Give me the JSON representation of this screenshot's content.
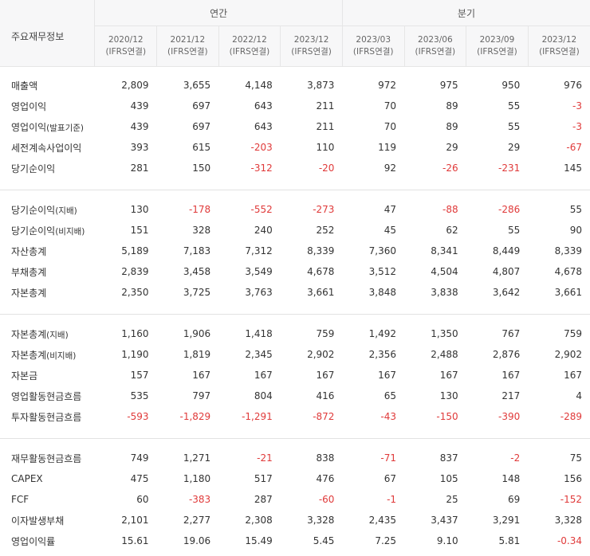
{
  "header": {
    "corner_label": "주요재무정보",
    "group_annual": "연간",
    "group_quarter": "분기",
    "periods": [
      {
        "date": "2020/12",
        "basis": "(IFRS연결)"
      },
      {
        "date": "2021/12",
        "basis": "(IFRS연결)"
      },
      {
        "date": "2022/12",
        "basis": "(IFRS연결)"
      },
      {
        "date": "2023/12",
        "basis": "(IFRS연결)"
      },
      {
        "date": "2023/03",
        "basis": "(IFRS연결)"
      },
      {
        "date": "2023/06",
        "basis": "(IFRS연결)"
      },
      {
        "date": "2023/09",
        "basis": "(IFRS연결)"
      },
      {
        "date": "2023/12",
        "basis": "(IFRS연결)"
      }
    ]
  },
  "sections": [
    [
      {
        "label": "매출액",
        "sub": "",
        "values": [
          "2,809",
          "3,655",
          "4,148",
          "3,873",
          "972",
          "975",
          "950",
          "976"
        ]
      },
      {
        "label": "영업이익",
        "sub": "",
        "values": [
          "439",
          "697",
          "643",
          "211",
          "70",
          "89",
          "55",
          "-3"
        ]
      },
      {
        "label": "영업이익",
        "sub": "(발표기준)",
        "values": [
          "439",
          "697",
          "643",
          "211",
          "70",
          "89",
          "55",
          "-3"
        ]
      },
      {
        "label": "세전계속사업이익",
        "sub": "",
        "values": [
          "393",
          "615",
          "-203",
          "110",
          "119",
          "29",
          "29",
          "-67"
        ]
      },
      {
        "label": "당기순이익",
        "sub": "",
        "values": [
          "281",
          "150",
          "-312",
          "-20",
          "92",
          "-26",
          "-231",
          "145"
        ]
      }
    ],
    [
      {
        "label": "당기순이익",
        "sub": "(지배)",
        "values": [
          "130",
          "-178",
          "-552",
          "-273",
          "47",
          "-88",
          "-286",
          "55"
        ]
      },
      {
        "label": "당기순이익",
        "sub": "(비지배)",
        "values": [
          "151",
          "328",
          "240",
          "252",
          "45",
          "62",
          "55",
          "90"
        ]
      },
      {
        "label": "자산총계",
        "sub": "",
        "values": [
          "5,189",
          "7,183",
          "7,312",
          "8,339",
          "7,360",
          "8,341",
          "8,449",
          "8,339"
        ]
      },
      {
        "label": "부채총계",
        "sub": "",
        "values": [
          "2,839",
          "3,458",
          "3,549",
          "4,678",
          "3,512",
          "4,504",
          "4,807",
          "4,678"
        ]
      },
      {
        "label": "자본총계",
        "sub": "",
        "values": [
          "2,350",
          "3,725",
          "3,763",
          "3,661",
          "3,848",
          "3,838",
          "3,642",
          "3,661"
        ]
      }
    ],
    [
      {
        "label": "자본총계",
        "sub": "(지배)",
        "values": [
          "1,160",
          "1,906",
          "1,418",
          "759",
          "1,492",
          "1,350",
          "767",
          "759"
        ]
      },
      {
        "label": "자본총계",
        "sub": "(비지배)",
        "values": [
          "1,190",
          "1,819",
          "2,345",
          "2,902",
          "2,356",
          "2,488",
          "2,876",
          "2,902"
        ]
      },
      {
        "label": "자본금",
        "sub": "",
        "values": [
          "157",
          "167",
          "167",
          "167",
          "167",
          "167",
          "167",
          "167"
        ]
      },
      {
        "label": "영업활동현금흐름",
        "sub": "",
        "values": [
          "535",
          "797",
          "804",
          "416",
          "65",
          "130",
          "217",
          "4"
        ]
      },
      {
        "label": "투자활동현금흐름",
        "sub": "",
        "values": [
          "-593",
          "-1,829",
          "-1,291",
          "-872",
          "-43",
          "-150",
          "-390",
          "-289"
        ]
      }
    ],
    [
      {
        "label": "재무활동현금흐름",
        "sub": "",
        "values": [
          "749",
          "1,271",
          "-21",
          "838",
          "-71",
          "837",
          "-2",
          "75"
        ]
      },
      {
        "label": "CAPEX",
        "sub": "",
        "values": [
          "475",
          "1,180",
          "517",
          "476",
          "67",
          "105",
          "148",
          "156"
        ]
      },
      {
        "label": "FCF",
        "sub": "",
        "values": [
          "60",
          "-383",
          "287",
          "-60",
          "-1",
          "25",
          "69",
          "-152"
        ]
      },
      {
        "label": "이자발생부채",
        "sub": "",
        "values": [
          "2,101",
          "2,277",
          "2,308",
          "3,328",
          "2,435",
          "3,437",
          "3,291",
          "3,328"
        ]
      },
      {
        "label": "영업이익률",
        "sub": "",
        "values": [
          "15.61",
          "19.06",
          "15.49",
          "5.45",
          "7.25",
          "9.10",
          "5.81",
          "-0.34"
        ]
      }
    ]
  ],
  "colors": {
    "negative": "#e03a3a",
    "header_bg": "#f7f7f8",
    "border": "#e6e6e6"
  }
}
